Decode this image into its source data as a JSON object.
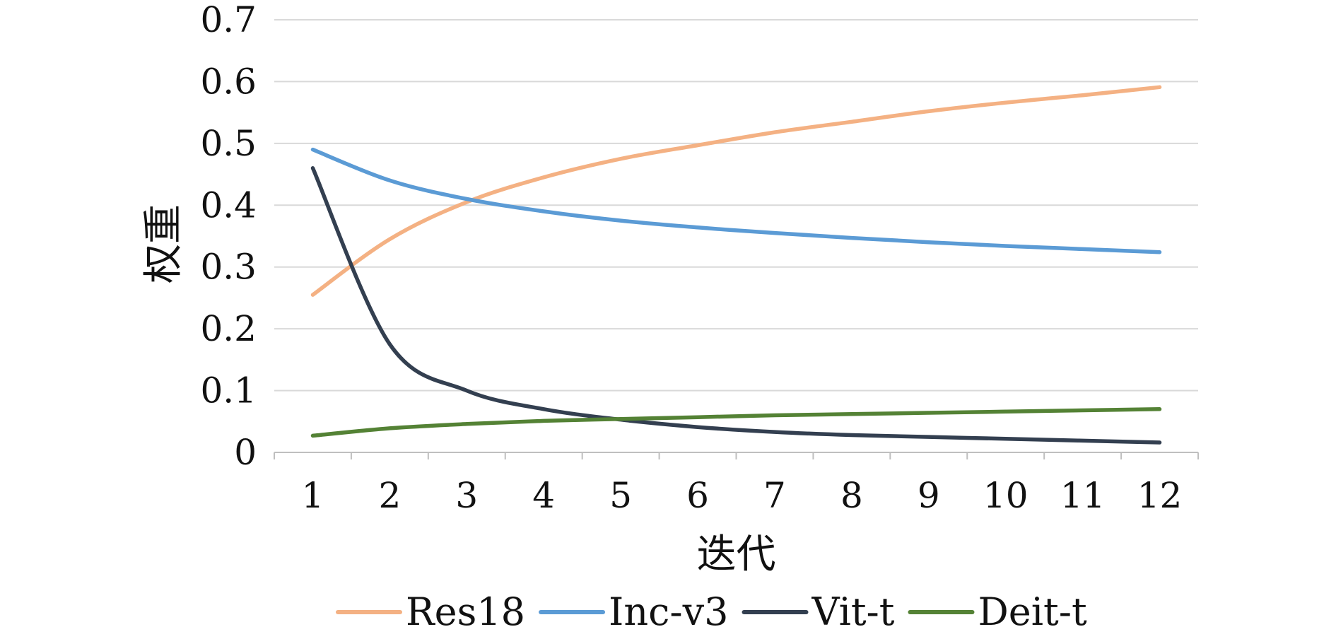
{
  "chart_data": {
    "type": "line",
    "xlabel": "迭代",
    "ylabel": "权重",
    "categories": [
      "1",
      "2",
      "3",
      "4",
      "5",
      "6",
      "7",
      "8",
      "9",
      "10",
      "11",
      "12"
    ],
    "ylim": [
      0,
      0.7
    ],
    "yticks": [
      "0",
      "0.1",
      "0.2",
      "0.3",
      "0.4",
      "0.5",
      "0.6",
      "0.7"
    ],
    "grid": "horizontal",
    "legend_position": "bottom",
    "series": [
      {
        "name": "Res18",
        "color": "#F4B183",
        "values": [
          0.255,
          0.345,
          0.405,
          0.445,
          0.475,
          0.497,
          0.518,
          0.535,
          0.552,
          0.566,
          0.578,
          0.591
        ]
      },
      {
        "name": "Inc-v3",
        "color": "#5B9BD5",
        "values": [
          0.49,
          0.44,
          0.41,
          0.39,
          0.375,
          0.364,
          0.355,
          0.347,
          0.34,
          0.334,
          0.329,
          0.324
        ]
      },
      {
        "name": "Vit-t",
        "color": "#333F50",
        "values": [
          0.46,
          0.175,
          0.1,
          0.07,
          0.053,
          0.041,
          0.033,
          0.028,
          0.025,
          0.022,
          0.019,
          0.016
        ]
      },
      {
        "name": "Deit-t",
        "color": "#548235",
        "values": [
          0.027,
          0.039,
          0.046,
          0.051,
          0.054,
          0.057,
          0.06,
          0.062,
          0.064,
          0.066,
          0.068,
          0.07
        ]
      }
    ]
  }
}
